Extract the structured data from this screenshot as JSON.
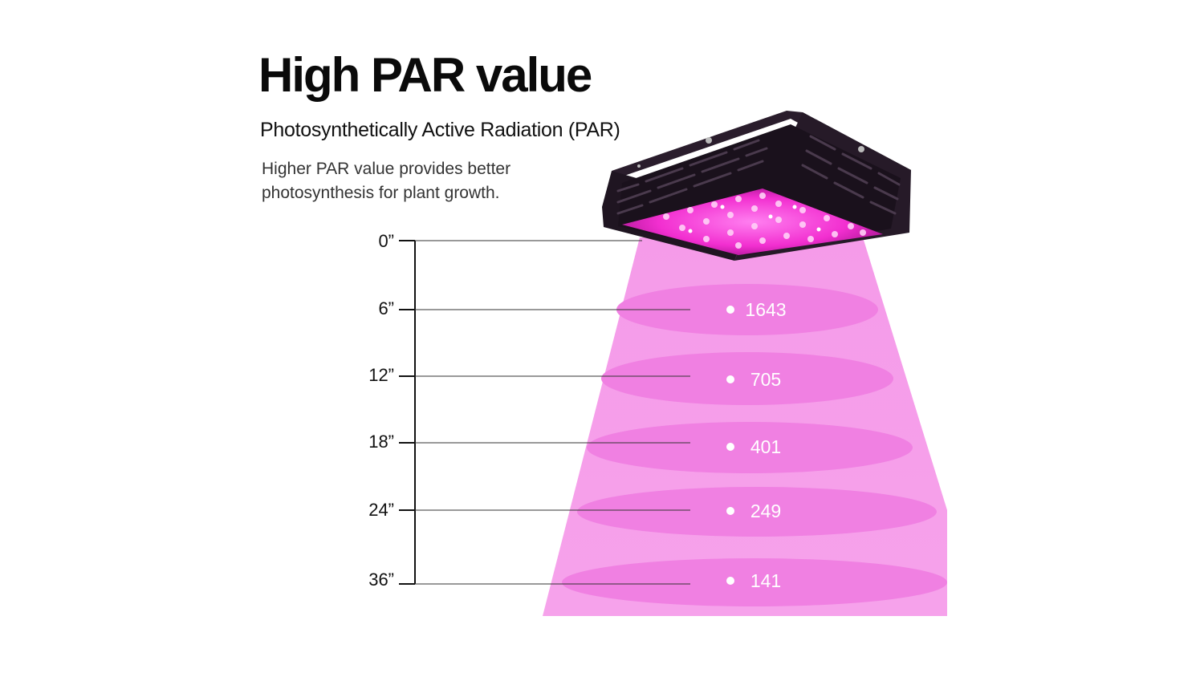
{
  "header": {
    "title": "High PAR value",
    "subtitle": "Photosynthetically Active Radiation (PAR)",
    "description": "Higher PAR value provides better photosynthesis for plant growth."
  },
  "measurements": [
    {
      "height": "0”",
      "par": ""
    },
    {
      "height": "6”",
      "par": "1643"
    },
    {
      "height": "12”",
      "par": "705"
    },
    {
      "height": "18”",
      "par": "401"
    },
    {
      "height": "24”",
      "par": "249"
    },
    {
      "height": "36”",
      "par": "141"
    }
  ],
  "icons": {
    "product": "led-grow-light-icon"
  },
  "colors": {
    "light_beam": "#f6a6ec",
    "light_ring": "#f07de3",
    "fixture": "#1e1420",
    "led": "#ff3fd8",
    "text": "#111111"
  }
}
